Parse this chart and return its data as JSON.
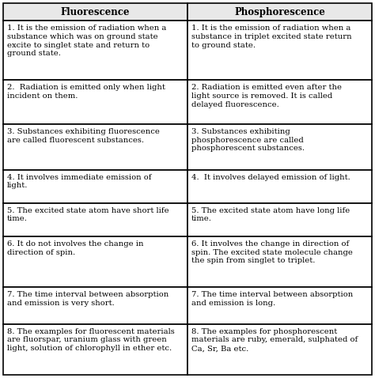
{
  "title_left": "Fluorescence",
  "title_right": "Phosphorescence",
  "rows": [
    {
      "left": "1. It is the emission of radiation when a\nsubstance which was on ground state\nexcite to singlet state and return to\nground state.",
      "right": "1. It is the emission of radiation when a\nsubstance in triplet excited state return\nto ground state."
    },
    {
      "left": "2.  Radiation is emitted only when light\nincident on them.",
      "right": "2. Radiation is emitted even after the\nlight source is removed. It is called\ndelayed fluorescence."
    },
    {
      "left": "3. Substances exhibiting fluorescence\nare called fluorescent substances.",
      "right": "3. Substances exhibiting\nphosphorescence are called\nphosphorescent substances."
    },
    {
      "left": "4. It involves immediate emission of\nlight.",
      "right": "4.  It involves delayed emission of light."
    },
    {
      "left": "5. The excited state atom have short life\ntime.",
      "right": "5. The excited state atom have long life\ntime."
    },
    {
      "left": "6. It do not involves the change in\ndirection of spin.",
      "right": "6. It involves the change in direction of\nspin. The excited state molecule change\nthe spin from singlet to triplet."
    },
    {
      "left": "7. The time interval between absorption\nand emission is very short.",
      "right": "7. The time interval between absorption\nand emission is long."
    },
    {
      "left": "8. The examples for fluorescent materials\nare fluorspar, uranium glass with green\nlight, solution of chlorophyll in ether etc.",
      "right": "8. The examples for phosphorescent\nmaterials are ruby, emerald, sulphated of\nCa, Sr, Ba etc."
    }
  ],
  "bg_color": "#ffffff",
  "header_bg": "#e8e8e8",
  "border_color": "#000000",
  "text_color": "#000000",
  "font_size": 7.2,
  "header_font_size": 8.5,
  "fig_width": 4.74,
  "fig_height": 4.78,
  "dpi": 100
}
